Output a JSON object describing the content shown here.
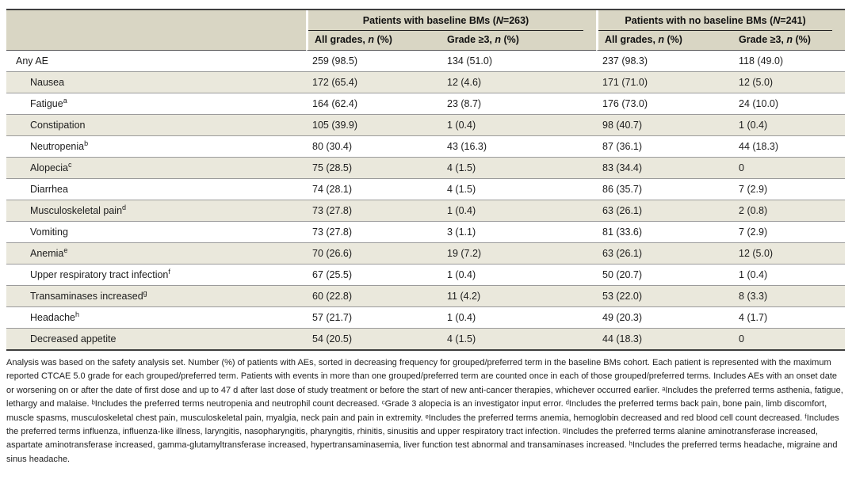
{
  "table": {
    "col_groups": [
      {
        "prefix": "Patients with baseline BMs (",
        "var": "N",
        "suffix": "=263)"
      },
      {
        "prefix": "Patients with no baseline BMs (",
        "var": "N",
        "suffix": "=241)"
      }
    ],
    "sub_headers": [
      {
        "prefix": "All grades, ",
        "var": "n",
        "suffix": " (%)"
      },
      {
        "prefix": "Grade ≥3, ",
        "var": "n",
        "suffix": " (%)"
      },
      {
        "prefix": "All grades, ",
        "var": "n",
        "suffix": " (%)"
      },
      {
        "prefix": "Grade ≥3, ",
        "var": "n",
        "suffix": " (%)"
      }
    ],
    "rows": [
      {
        "term": "Any AE",
        "sup": "",
        "indent": false,
        "values": [
          "259 (98.5)",
          "134 (51.0)",
          "237 (98.3)",
          "118 (49.0)"
        ]
      },
      {
        "term": "Nausea",
        "sup": "",
        "indent": true,
        "values": [
          "172 (65.4)",
          "12 (4.6)",
          "171 (71.0)",
          "12 (5.0)"
        ]
      },
      {
        "term": "Fatigue",
        "sup": "a",
        "indent": true,
        "values": [
          "164 (62.4)",
          "23 (8.7)",
          "176 (73.0)",
          "24 (10.0)"
        ]
      },
      {
        "term": "Constipation",
        "sup": "",
        "indent": true,
        "values": [
          "105 (39.9)",
          "1 (0.4)",
          "98 (40.7)",
          "1 (0.4)"
        ]
      },
      {
        "term": "Neutropenia",
        "sup": "b",
        "indent": true,
        "values": [
          "80 (30.4)",
          "43 (16.3)",
          "87 (36.1)",
          "44 (18.3)"
        ]
      },
      {
        "term": "Alopecia",
        "sup": "c",
        "indent": true,
        "values": [
          "75 (28.5)",
          "4 (1.5)",
          "83 (34.4)",
          "0"
        ]
      },
      {
        "term": "Diarrhea",
        "sup": "",
        "indent": true,
        "values": [
          "74 (28.1)",
          "4 (1.5)",
          "86 (35.7)",
          "7 (2.9)"
        ]
      },
      {
        "term": "Musculoskeletal pain",
        "sup": "d",
        "indent": true,
        "values": [
          "73 (27.8)",
          "1 (0.4)",
          "63 (26.1)",
          "2 (0.8)"
        ]
      },
      {
        "term": "Vomiting",
        "sup": "",
        "indent": true,
        "values": [
          "73 (27.8)",
          "3 (1.1)",
          "81 (33.6)",
          "7 (2.9)"
        ]
      },
      {
        "term": "Anemia",
        "sup": "e",
        "indent": true,
        "values": [
          "70 (26.6)",
          "19 (7.2)",
          "63 (26.1)",
          "12 (5.0)"
        ]
      },
      {
        "term": "Upper respiratory tract infection",
        "sup": "f",
        "indent": true,
        "values": [
          "67 (25.5)",
          "1 (0.4)",
          "50 (20.7)",
          "1 (0.4)"
        ]
      },
      {
        "term": "Transaminases increased",
        "sup": "g",
        "indent": true,
        "values": [
          "60 (22.8)",
          "11 (4.2)",
          "53 (22.0)",
          "8 (3.3)"
        ]
      },
      {
        "term": "Headache",
        "sup": "h",
        "indent": true,
        "values": [
          "57 (21.7)",
          "1 (0.4)",
          "49 (20.3)",
          "4 (1.7)"
        ]
      },
      {
        "term": "Decreased appetite",
        "sup": "",
        "indent": true,
        "values": [
          "54 (20.5)",
          "4 (1.5)",
          "44 (18.3)",
          "0"
        ]
      }
    ]
  },
  "footnote": "Analysis was based on the safety analysis set. Number (%) of patients with AEs, sorted in decreasing frequency for grouped/preferred term in the baseline BMs cohort. Each patient is represented with the maximum reported CTCAE 5.0 grade for each grouped/preferred term. Patients with events in more than one grouped/preferred term are counted once in each of those grouped/preferred terms. Includes AEs with an onset date or worsening on or after the date of first dose and up to 47 d after last dose of study treatment or before the start of new anti-cancer therapies, whichever occurred earlier. ᵃIncludes the preferred terms asthenia, fatigue, lethargy and malaise. ᵇIncludes the preferred terms neutropenia and neutrophil count decreased. ᶜGrade 3 alopecia is an investigator input error. ᵈIncludes the preferred terms back pain, bone pain, limb discomfort, muscle spasms, musculoskeletal chest pain, musculoskeletal pain, myalgia, neck pain and pain in extremity. ᵉIncludes the preferred terms anemia, hemoglobin decreased and red blood cell count decreased. ᶠIncludes the preferred terms influenza, influenza-like illness, laryngitis, nasopharyngitis, pharyngitis, rhinitis, sinusitis and upper respiratory tract infection. ᵍIncludes the preferred terms alanine aminotransferase increased, aspartate aminotransferase increased, gamma-glutamyltransferase increased, hypertransaminasemia, liver function test abnormal and transaminases increased. ʰIncludes the preferred terms headache, migraine and sinus headache.",
  "colors": {
    "header_band": "#d9d6c4",
    "row_stripe": "#eae8dc",
    "heavy_rule": "#3e3e3e",
    "row_rule": "#9b9b9b",
    "text": "#1c1c1c"
  }
}
